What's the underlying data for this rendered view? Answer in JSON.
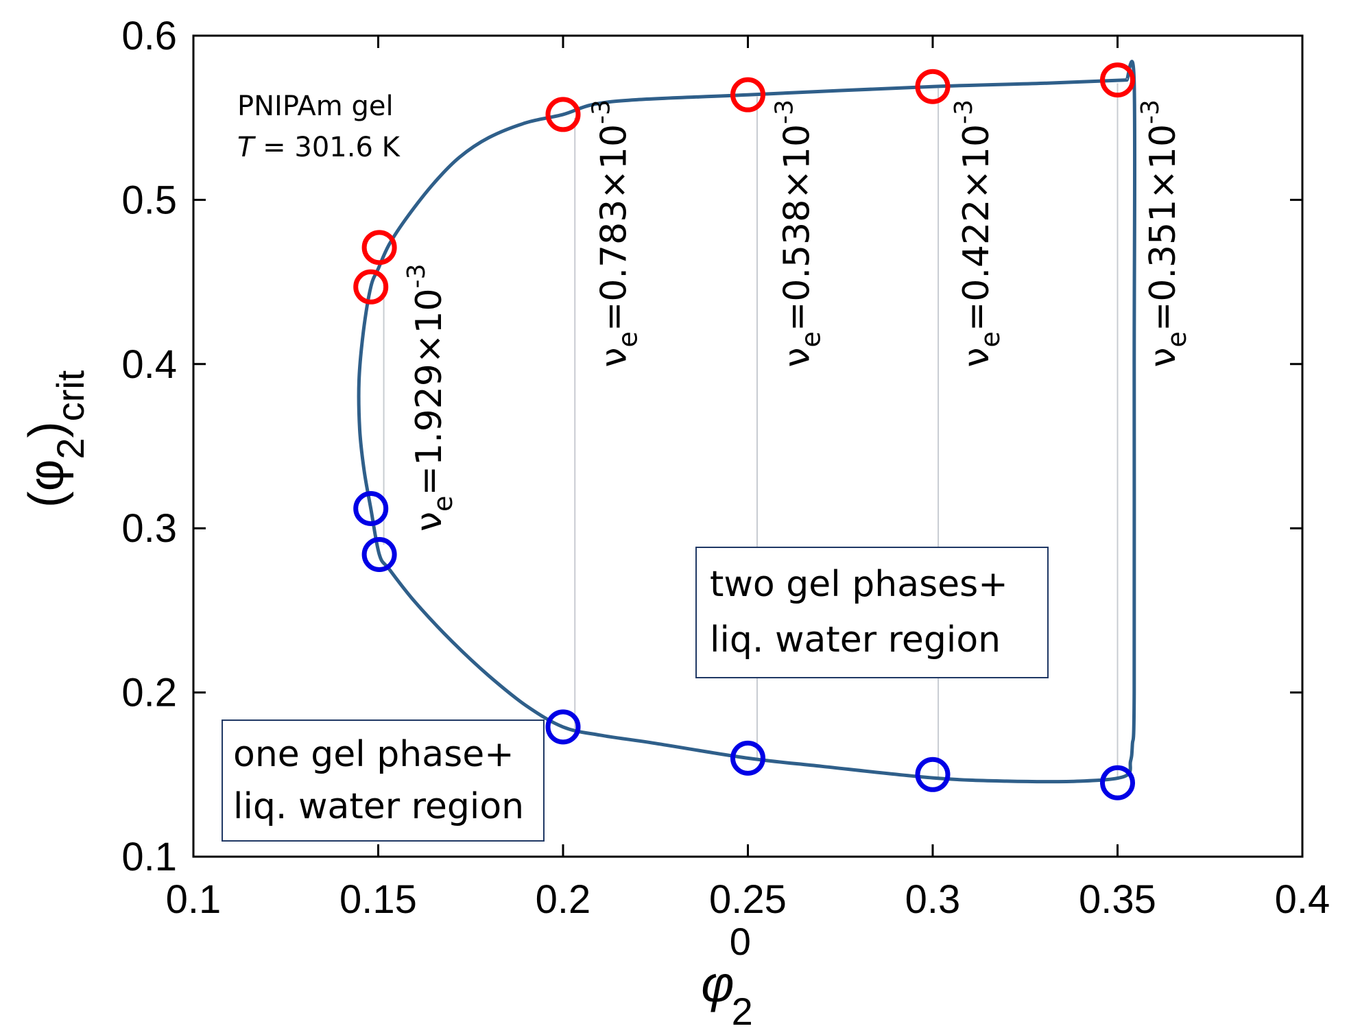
{
  "chart_data": {
    "type": "scatter",
    "title": "",
    "xlabel": "φ",
    "xlabel_sub": "2",
    "xlabel_sup": "0",
    "ylabel_main": "(φ",
    "ylabel_sub1": "2",
    "ylabel_close": ")",
    "ylabel_sub2": "crit",
    "xlim": [
      0.1,
      0.4
    ],
    "ylim": [
      0.1,
      0.6
    ],
    "xticks": [
      "0.1",
      "0.15",
      "0.2",
      "0.25",
      "0.3",
      "0.35",
      "0.4"
    ],
    "xtick_values": [
      0.1,
      0.15,
      0.2,
      0.25,
      0.3,
      0.35,
      0.4
    ],
    "yticks": [
      "0.1",
      "0.2",
      "0.3",
      "0.4",
      "0.5",
      "0.6"
    ],
    "ytick_values": [
      0.1,
      0.2,
      0.3,
      0.4,
      0.5,
      0.6
    ],
    "series": [
      {
        "name": "upper phase",
        "color": "#ff0000",
        "marker": "open-circle",
        "points": [
          [
            0.148,
            0.447
          ],
          [
            0.1503,
            0.471
          ],
          [
            0.2,
            0.552
          ],
          [
            0.25,
            0.564
          ],
          [
            0.3,
            0.569
          ],
          [
            0.35,
            0.573
          ]
        ]
      },
      {
        "name": "lower phase",
        "color": "#0000e6",
        "marker": "open-circle",
        "points": [
          [
            0.148,
            0.312
          ],
          [
            0.1503,
            0.284
          ],
          [
            0.2,
            0.179
          ],
          [
            0.25,
            0.16
          ],
          [
            0.3,
            0.15
          ],
          [
            0.35,
            0.145
          ]
        ]
      },
      {
        "name": "binodal curve",
        "color": "#2f5f8a",
        "marker": "line",
        "points": [
          [
            0.3525,
            0.573
          ],
          [
            0.33,
            0.571
          ],
          [
            0.3,
            0.569
          ],
          [
            0.25,
            0.564
          ],
          [
            0.22,
            0.561
          ],
          [
            0.208,
            0.558
          ],
          [
            0.2,
            0.552
          ],
          [
            0.19,
            0.547
          ],
          [
            0.18,
            0.538
          ],
          [
            0.172,
            0.526
          ],
          [
            0.165,
            0.51
          ],
          [
            0.158,
            0.49
          ],
          [
            0.153,
            0.473
          ],
          [
            0.15,
            0.458
          ],
          [
            0.148,
            0.447
          ],
          [
            0.146,
            0.42
          ],
          [
            0.1448,
            0.39
          ],
          [
            0.145,
            0.36
          ],
          [
            0.1462,
            0.335
          ],
          [
            0.148,
            0.312
          ],
          [
            0.1503,
            0.284
          ],
          [
            0.153,
            0.275
          ],
          [
            0.16,
            0.255
          ],
          [
            0.17,
            0.231
          ],
          [
            0.18,
            0.21
          ],
          [
            0.19,
            0.192
          ],
          [
            0.2,
            0.179
          ],
          [
            0.21,
            0.174
          ],
          [
            0.225,
            0.169
          ],
          [
            0.25,
            0.16
          ],
          [
            0.27,
            0.155
          ],
          [
            0.3,
            0.148
          ],
          [
            0.32,
            0.146
          ],
          [
            0.34,
            0.146
          ],
          [
            0.352,
            0.149
          ],
          [
            0.3535,
            0.158
          ],
          [
            0.354,
            0.168
          ],
          [
            0.3545,
            0.2
          ],
          [
            0.3545,
            0.4
          ],
          [
            0.3545,
            0.571
          ],
          [
            0.3525,
            0.573
          ]
        ]
      }
    ],
    "tie_lines": [
      {
        "x": 0.1515,
        "y_low": 0.29,
        "y_high": 0.45
      },
      {
        "x": 0.2032,
        "y_low": 0.178,
        "y_high": 0.55
      },
      {
        "x": 0.2525,
        "y_low": 0.16,
        "y_high": 0.563
      },
      {
        "x": 0.3015,
        "y_low": 0.148,
        "y_high": 0.568
      },
      {
        "x": 0.35,
        "y_low": 0.148,
        "y_high": 0.571
      }
    ],
    "nu_labels": [
      {
        "x": 0.167,
        "y": 0.298,
        "value": "=1.929×10",
        "exp": "-3"
      },
      {
        "x": 0.217,
        "y": 0.398,
        "value": "=0.783×10",
        "exp": "-3"
      },
      {
        "x": 0.2665,
        "y": 0.398,
        "value": "=0.538×10",
        "exp": "-3"
      },
      {
        "x": 0.315,
        "y": 0.398,
        "value": "=0.422×10",
        "exp": "-3"
      },
      {
        "x": 0.3655,
        "y": 0.398,
        "value": "=0.351×10",
        "exp": "-3"
      }
    ],
    "nu_symbol": "ν",
    "nu_sub": "e",
    "annotation": {
      "line1": "PNIPAm gel",
      "line2_var": "T",
      "line2_rest": " = 301.6 K"
    },
    "regions": [
      {
        "name": "one-gel",
        "line1": "one gel phase+",
        "line2": "liq. water region"
      },
      {
        "name": "two-gel",
        "line1": "two gel phases+",
        "line2": "liq. water region"
      }
    ]
  }
}
